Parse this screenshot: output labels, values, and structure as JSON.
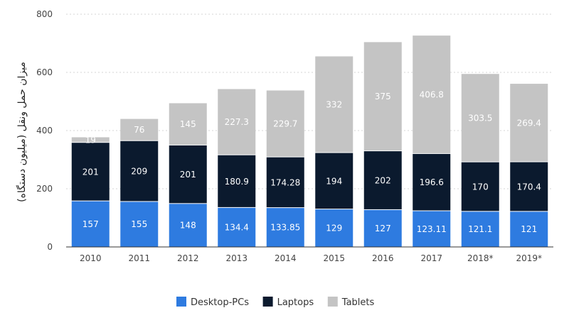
{
  "chart_data": {
    "type": "bar",
    "stacked": true,
    "title": "",
    "xlabel": "",
    "ylabel": "میزان حمل ونقل (میلیون دستگاه)",
    "categories": [
      "2010",
      "2011",
      "2012",
      "2013",
      "2014",
      "2015",
      "2016",
      "2017",
      "2018*",
      "2019*"
    ],
    "series": [
      {
        "name": "Desktop-PCs",
        "color": "#2e7be0",
        "values": [
          157,
          155,
          148,
          134.4,
          133.85,
          129,
          127,
          123.11,
          121.1,
          121
        ],
        "labels": [
          "157",
          "155",
          "148",
          "134.4",
          "133.85",
          "129",
          "127",
          "123.11",
          "121.1",
          "121"
        ]
      },
      {
        "name": "Laptops",
        "color": "#0b1a2e",
        "values": [
          201,
          209,
          201,
          180.9,
          174.28,
          194,
          202,
          196.6,
          170,
          170.4
        ],
        "labels": [
          "201",
          "209",
          "201",
          "180.9",
          "174.28",
          "194",
          "202",
          "196.6",
          "170",
          "170.4"
        ]
      },
      {
        "name": "Tablets",
        "color": "#c4c4c4",
        "values": [
          19,
          76,
          145,
          227.3,
          229.7,
          332,
          375,
          406.8,
          303.5,
          269.4
        ],
        "labels": [
          "19",
          "76",
          "145",
          "227.3",
          "229.7",
          "332",
          "375",
          "406.8",
          "303.5",
          "269.4"
        ]
      }
    ],
    "ylim": [
      0,
      800
    ],
    "yticks": [
      0,
      200,
      400,
      600,
      800
    ],
    "ytick_labels": [
      "0",
      "200",
      "400",
      "600",
      "800"
    ],
    "grid": true,
    "legend_position": "bottom-center"
  }
}
